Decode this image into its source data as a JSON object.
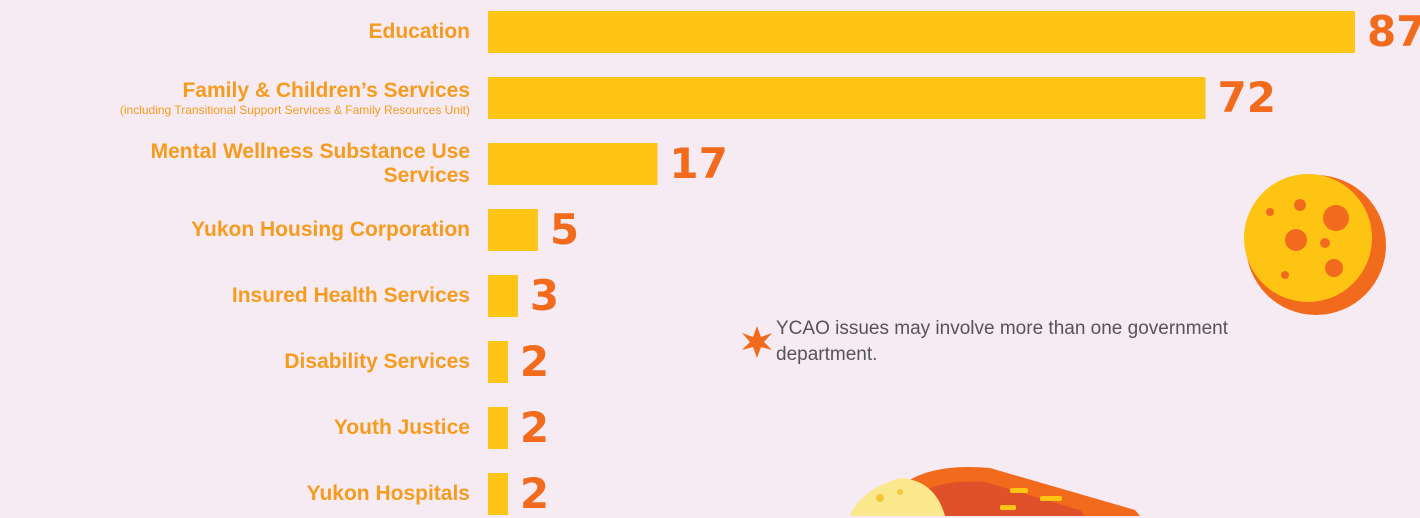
{
  "chart_data": {
    "type": "bar",
    "orientation": "horizontal",
    "categories": [
      "Education",
      "Family & Children’s Services",
      "Mental Wellness Substance Use Services",
      "Yukon Housing Corporation",
      "Insured Health Services",
      "Disability Services",
      "Youth Justice",
      "Yukon Hospitals"
    ],
    "values": [
      87,
      72,
      17,
      5,
      3,
      2,
      2,
      2
    ],
    "color": "#fdc414",
    "xlim": [
      0,
      87
    ],
    "annotations": [
      {
        "category": "Family & Children’s Services",
        "text": "(including Transitional Support Services & Family Resources Unit)"
      }
    ],
    "note": "YCAO issues may involve more than one government department."
  }
}
